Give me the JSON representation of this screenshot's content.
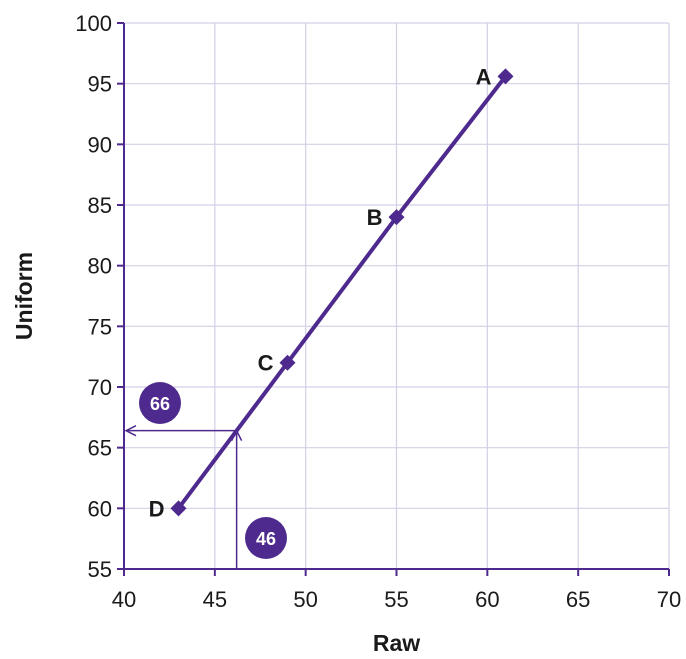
{
  "chart_data": {
    "type": "line",
    "xlabel": "Raw",
    "ylabel": "Uniform",
    "xlim": [
      40,
      70
    ],
    "ylim": [
      55,
      100
    ],
    "x_ticks": [
      40,
      45,
      50,
      55,
      60,
      65,
      70
    ],
    "y_ticks": [
      55,
      60,
      65,
      70,
      75,
      80,
      85,
      90,
      95,
      100
    ],
    "grid": true,
    "colors": {
      "line": "#4e2a8e",
      "grid": "#d4cfe6",
      "axis": "#4e2a8e",
      "badge": "#4e2a8e"
    },
    "series": [
      {
        "points": [
          {
            "label": "D",
            "x": 43,
            "y": 60
          },
          {
            "label": "C",
            "x": 49,
            "y": 72
          },
          {
            "label": "B",
            "x": 55,
            "y": 84
          },
          {
            "label": "A",
            "x": 61,
            "y": 95.6
          }
        ]
      }
    ],
    "annotations": [
      {
        "type": "lookup",
        "raw": 46.2,
        "uniform": 66.4,
        "raw_badge": "46",
        "uniform_badge": "66"
      }
    ]
  }
}
